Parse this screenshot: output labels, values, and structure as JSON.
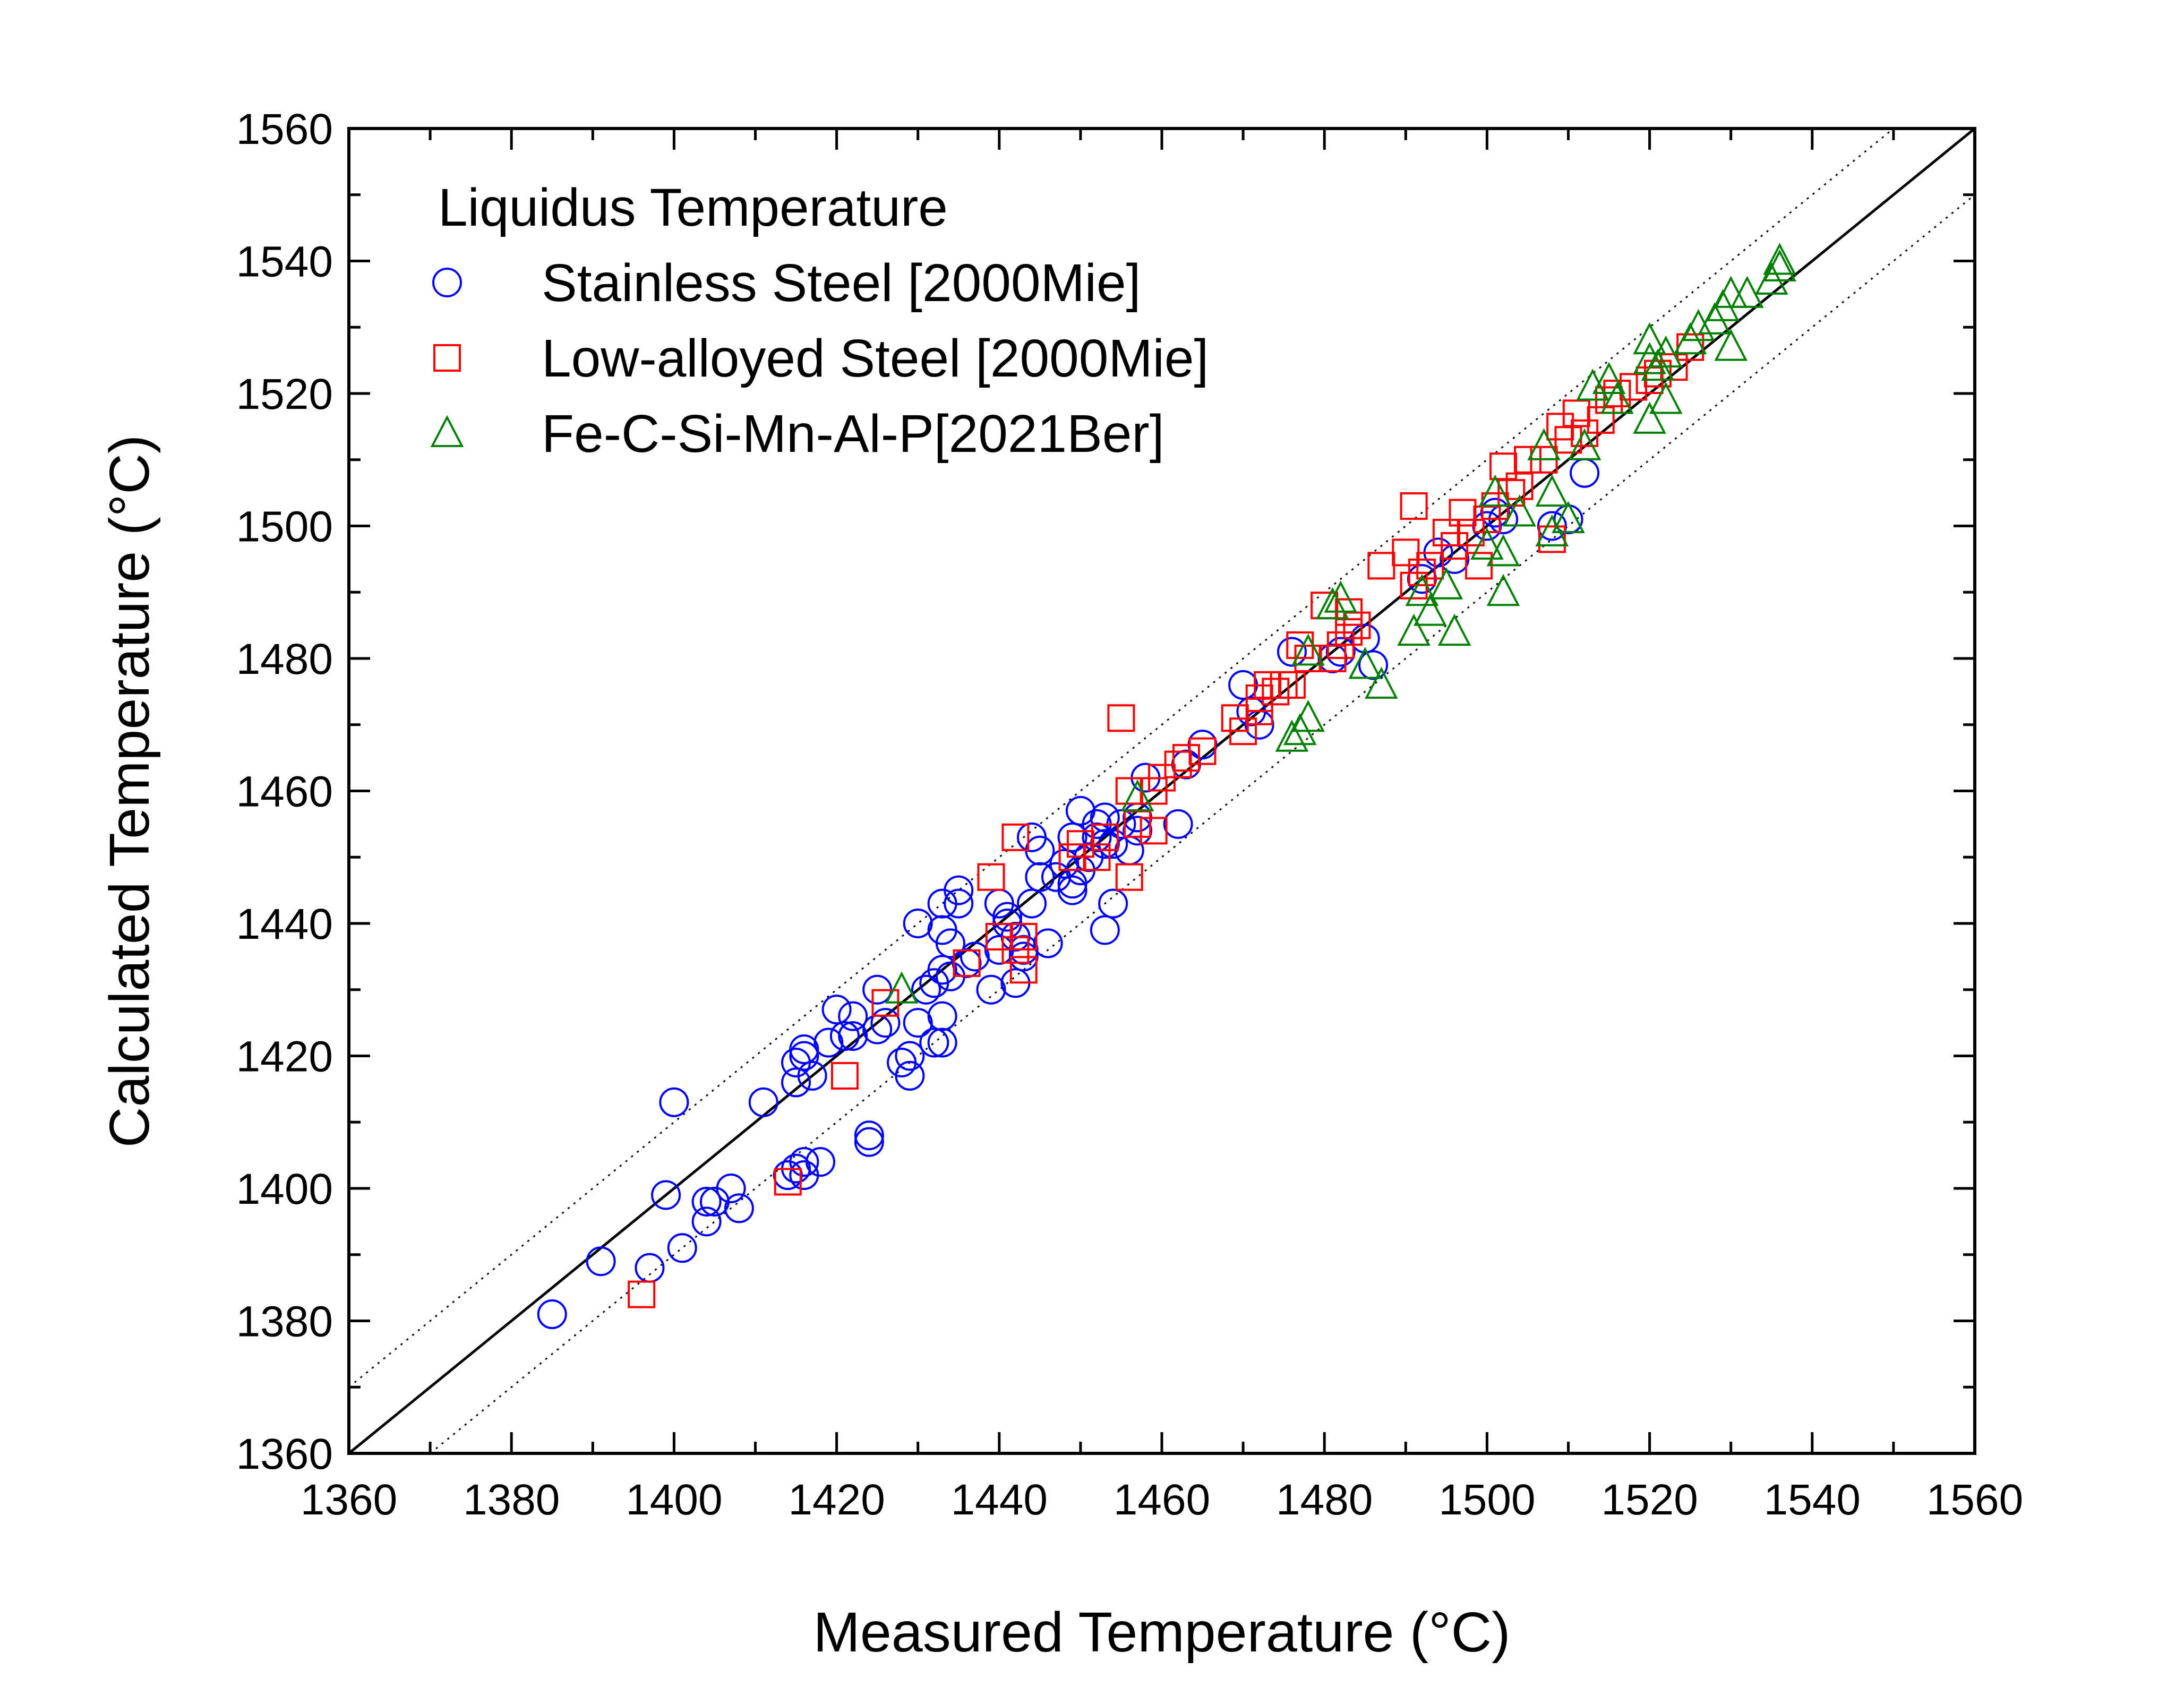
{
  "chart_data": {
    "type": "scatter",
    "xlabel": "Measured Temperature (°C)",
    "ylabel": "Calculated Temperature (°C)",
    "xlim": [
      1360,
      1560
    ],
    "ylim": [
      1360,
      1560
    ],
    "xticks": [
      1360,
      1380,
      1400,
      1420,
      1440,
      1460,
      1480,
      1500,
      1520,
      1540,
      1560
    ],
    "yticks": [
      1360,
      1380,
      1400,
      1420,
      1440,
      1460,
      1480,
      1500,
      1520,
      1540,
      1560
    ],
    "grid": false,
    "legend": {
      "title": "Liquidus Temperature",
      "placement": "top-left"
    },
    "reference_lines": [
      {
        "type": "solid",
        "offset": 0,
        "description": "y = x"
      },
      {
        "type": "dotted",
        "offset": 10
      },
      {
        "type": "dotted",
        "offset": -10
      }
    ],
    "series": [
      {
        "name": "Stainless Steel [2000Mie]",
        "marker": "circle",
        "color": "#0000ff",
        "points": [
          [
            1385,
            1381
          ],
          [
            1391,
            1389
          ],
          [
            1397,
            1388
          ],
          [
            1399,
            1399
          ],
          [
            1400,
            1413
          ],
          [
            1401,
            1391
          ],
          [
            1404,
            1395
          ],
          [
            1404,
            1398
          ],
          [
            1405,
            1398
          ],
          [
            1407,
            1400
          ],
          [
            1408,
            1397
          ],
          [
            1411,
            1413
          ],
          [
            1414,
            1402
          ],
          [
            1415,
            1403
          ],
          [
            1416,
            1404
          ],
          [
            1416,
            1402
          ],
          [
            1418,
            1404
          ],
          [
            1415,
            1416
          ],
          [
            1415,
            1419
          ],
          [
            1416,
            1420
          ],
          [
            1416,
            1421
          ],
          [
            1417,
            1417
          ],
          [
            1419,
            1422
          ],
          [
            1420,
            1427
          ],
          [
            1421,
            1423
          ],
          [
            1422,
            1426
          ],
          [
            1422,
            1423
          ],
          [
            1424,
            1407
          ],
          [
            1424,
            1408
          ],
          [
            1425,
            1424
          ],
          [
            1425,
            1430
          ],
          [
            1426,
            1425
          ],
          [
            1428,
            1419
          ],
          [
            1429,
            1417
          ],
          [
            1429,
            1420
          ],
          [
            1430,
            1440
          ],
          [
            1430,
            1425
          ],
          [
            1431,
            1430
          ],
          [
            1432,
            1431
          ],
          [
            1432,
            1422
          ],
          [
            1433,
            1426
          ],
          [
            1433,
            1433
          ],
          [
            1433,
            1443
          ],
          [
            1433,
            1439
          ],
          [
            1434,
            1437
          ],
          [
            1434,
            1432
          ],
          [
            1433,
            1422
          ],
          [
            1435,
            1443
          ],
          [
            1435,
            1445
          ],
          [
            1436,
            1434
          ],
          [
            1437,
            1435
          ],
          [
            1439,
            1430
          ],
          [
            1440,
            1443
          ],
          [
            1440,
            1436
          ],
          [
            1441,
            1440
          ],
          [
            1441,
            1441
          ],
          [
            1442,
            1438
          ],
          [
            1442,
            1431
          ],
          [
            1443,
            1436
          ],
          [
            1443,
            1435
          ],
          [
            1444,
            1443
          ],
          [
            1444,
            1453
          ],
          [
            1445,
            1447
          ],
          [
            1445,
            1451
          ],
          [
            1446,
            1437
          ],
          [
            1447,
            1447
          ],
          [
            1448,
            1449
          ],
          [
            1449,
            1445
          ],
          [
            1449,
            1446
          ],
          [
            1449,
            1453
          ],
          [
            1450,
            1457
          ],
          [
            1450,
            1448
          ],
          [
            1451,
            1450
          ],
          [
            1452,
            1453
          ],
          [
            1452,
            1455
          ],
          [
            1453,
            1452
          ],
          [
            1453,
            1439
          ],
          [
            1453,
            1456
          ],
          [
            1454,
            1443
          ],
          [
            1454,
            1452
          ],
          [
            1455,
            1455
          ],
          [
            1456,
            1451
          ],
          [
            1457,
            1454
          ],
          [
            1458,
            1462
          ],
          [
            1457,
            1456
          ],
          [
            1462,
            1455
          ],
          [
            1463,
            1464
          ],
          [
            1465,
            1467
          ],
          [
            1470,
            1476
          ],
          [
            1471,
            1472
          ],
          [
            1472,
            1470
          ],
          [
            1476,
            1481
          ],
          [
            1481,
            1480
          ],
          [
            1482,
            1481
          ],
          [
            1485,
            1483
          ],
          [
            1486,
            1479
          ],
          [
            1492,
            1492
          ],
          [
            1494,
            1496
          ],
          [
            1496,
            1495
          ],
          [
            1500,
            1500
          ],
          [
            1501,
            1502
          ],
          [
            1502,
            1501
          ],
          [
            1508,
            1500
          ],
          [
            1510,
            1501
          ],
          [
            1512,
            1508
          ]
        ]
      },
      {
        "name": "Low-alloyed Steel [2000Mie]",
        "marker": "square",
        "color": "#ff0000",
        "points": [
          [
            1396,
            1384
          ],
          [
            1414,
            1401
          ],
          [
            1421,
            1417
          ],
          [
            1426,
            1428
          ],
          [
            1436,
            1434
          ],
          [
            1439,
            1447
          ],
          [
            1440,
            1438
          ],
          [
            1442,
            1453
          ],
          [
            1442,
            1436
          ],
          [
            1443,
            1433
          ],
          [
            1443,
            1438
          ],
          [
            1449,
            1450
          ],
          [
            1450,
            1452
          ],
          [
            1452,
            1450
          ],
          [
            1453,
            1453
          ],
          [
            1455,
            1471
          ],
          [
            1456,
            1447
          ],
          [
            1456,
            1460
          ],
          [
            1457,
            1455
          ],
          [
            1459,
            1454
          ],
          [
            1459,
            1460
          ],
          [
            1460,
            1462
          ],
          [
            1462,
            1464
          ],
          [
            1463,
            1465
          ],
          [
            1465,
            1466
          ],
          [
            1469,
            1471
          ],
          [
            1470,
            1469
          ],
          [
            1472,
            1472
          ],
          [
            1472,
            1474
          ],
          [
            1473,
            1476
          ],
          [
            1474,
            1475
          ],
          [
            1475,
            1476
          ],
          [
            1476,
            1476
          ],
          [
            1477,
            1482
          ],
          [
            1478,
            1480
          ],
          [
            1480,
            1488
          ],
          [
            1481,
            1480
          ],
          [
            1482,
            1482
          ],
          [
            1483,
            1484
          ],
          [
            1483,
            1487
          ],
          [
            1484,
            1485
          ],
          [
            1487,
            1494
          ],
          [
            1490,
            1496
          ],
          [
            1491,
            1503
          ],
          [
            1491,
            1491
          ],
          [
            1492,
            1493
          ],
          [
            1493,
            1494
          ],
          [
            1495,
            1499
          ],
          [
            1496,
            1497
          ],
          [
            1497,
            1502
          ],
          [
            1498,
            1499
          ],
          [
            1499,
            1494
          ],
          [
            1500,
            1501
          ],
          [
            1501,
            1503
          ],
          [
            1502,
            1509
          ],
          [
            1503,
            1505
          ],
          [
            1504,
            1506
          ],
          [
            1505,
            1510
          ],
          [
            1507,
            1510
          ],
          [
            1508,
            1498
          ],
          [
            1509,
            1515
          ],
          [
            1510,
            1513
          ],
          [
            1511,
            1517
          ],
          [
            1512,
            1514
          ],
          [
            1514,
            1516
          ],
          [
            1515,
            1519
          ],
          [
            1516,
            1520
          ],
          [
            1518,
            1521
          ],
          [
            1520,
            1522
          ],
          [
            1521,
            1523
          ],
          [
            1523,
            1524
          ],
          [
            1525,
            1527
          ]
        ]
      },
      {
        "name": "Fe-C-Si-Mn-Al-P[2021Ber]",
        "marker": "triangle",
        "color": "#008000",
        "points": [
          [
            1428,
            1430
          ],
          [
            1457,
            1459
          ],
          [
            1476,
            1468
          ],
          [
            1477,
            1469
          ],
          [
            1478,
            1471
          ],
          [
            1478,
            1481
          ],
          [
            1481,
            1488
          ],
          [
            1482,
            1489
          ],
          [
            1485,
            1479
          ],
          [
            1487,
            1476
          ],
          [
            1491,
            1484
          ],
          [
            1492,
            1490
          ],
          [
            1493,
            1487
          ],
          [
            1495,
            1491
          ],
          [
            1496,
            1484
          ],
          [
            1500,
            1497
          ],
          [
            1501,
            1505
          ],
          [
            1502,
            1490
          ],
          [
            1502,
            1496
          ],
          [
            1504,
            1502
          ],
          [
            1507,
            1512
          ],
          [
            1508,
            1505
          ],
          [
            1508,
            1499
          ],
          [
            1510,
            1501
          ],
          [
            1512,
            1512
          ],
          [
            1513,
            1521
          ],
          [
            1515,
            1522
          ],
          [
            1516,
            1519
          ],
          [
            1520,
            1516
          ],
          [
            1520,
            1525
          ],
          [
            1520,
            1528
          ],
          [
            1521,
            1524
          ],
          [
            1522,
            1519
          ],
          [
            1522,
            1526
          ],
          [
            1525,
            1528
          ],
          [
            1526,
            1530
          ],
          [
            1528,
            1531
          ],
          [
            1529,
            1533
          ],
          [
            1530,
            1527
          ],
          [
            1530,
            1535
          ],
          [
            1532,
            1535
          ],
          [
            1535,
            1537
          ],
          [
            1536,
            1539
          ],
          [
            1536,
            1540
          ]
        ]
      }
    ]
  }
}
